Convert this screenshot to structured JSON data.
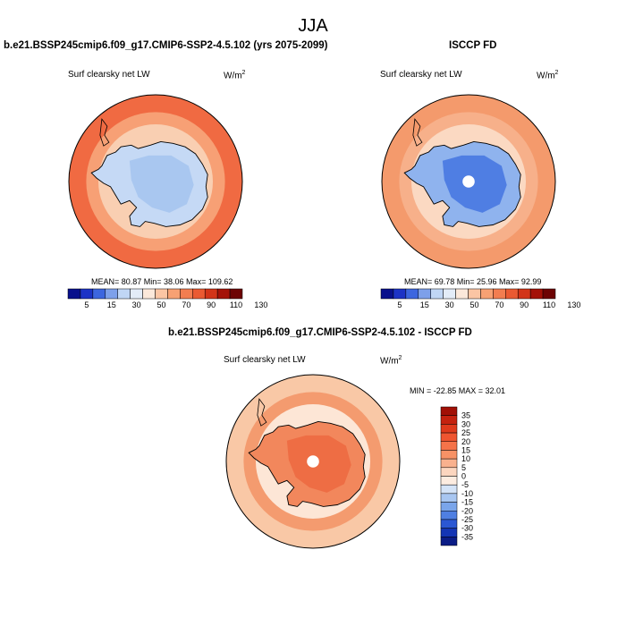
{
  "page_title": "JJA",
  "chart_data": [
    {
      "type": "heatmap",
      "projection": "south-polar-stereographic",
      "title": "b.e21.BSSP245cmip6.f09_g17.CMIP6-SSP2-4.5.102 (yrs 2075-2099)",
      "variable": "Surf clearsky net LW",
      "units": "W/m",
      "units_sup": "2",
      "stats": {
        "mean": 80.87,
        "min": 38.06,
        "max": 109.62
      },
      "stats_text": "MEAN=  80.87  Min=  38.06  Max=  109.62",
      "colorbar": {
        "levels": [
          5,
          15,
          30,
          50,
          70,
          90,
          110,
          130
        ],
        "labels": [
          "5",
          "15",
          "30",
          "50",
          "70",
          "90",
          "110",
          "130"
        ],
        "colors": [
          "#08108c",
          "#1c33c6",
          "#3c66df",
          "#7da0ea",
          "#c0d6f5",
          "#e3ecf8",
          "#fbe8da",
          "#fbc5a4",
          "#f7a173",
          "#f27d50",
          "#ea5a32",
          "#d23418",
          "#a41208",
          "#6d0404"
        ]
      },
      "ocean_color": "#f06a42",
      "ring_color": "#f7a075",
      "coast_color": "#f9cfb2",
      "land_color": "#c5d9f5",
      "interior_color": "#a9c7f0"
    },
    {
      "type": "heatmap",
      "projection": "south-polar-stereographic",
      "title": "ISCCP FD",
      "variable": "Surf clearsky net LW",
      "units": "W/m",
      "units_sup": "2",
      "stats": {
        "mean": 69.78,
        "min": 25.96,
        "max": 92.99
      },
      "stats_text": "MEAN=  69.78  Min=  25.96  Max=  92.99",
      "colorbar": {
        "levels": [
          5,
          15,
          30,
          50,
          70,
          90,
          110,
          130
        ],
        "labels": [
          "5",
          "15",
          "30",
          "50",
          "70",
          "90",
          "110",
          "130"
        ],
        "colors": [
          "#08108c",
          "#1c33c6",
          "#3c66df",
          "#7da0ea",
          "#c0d6f5",
          "#e3ecf8",
          "#fbe8da",
          "#fbc5a4",
          "#f7a173",
          "#f27d50",
          "#ea5a32",
          "#d23418",
          "#a41208",
          "#6d0404"
        ]
      },
      "ocean_color": "#f49a6c",
      "ring_color": "#f7b08a",
      "coast_color": "#fbd9c2",
      "land_color": "#8fb3ee",
      "interior_color": "#4f7ee3"
    },
    {
      "type": "heatmap",
      "projection": "south-polar-stereographic",
      "title": "b.e21.BSSP245cmip6.f09_g17.CMIP6-SSP2-4.5.102 - ISCCP FD",
      "variable": "Surf clearsky net LW",
      "units": "W/m",
      "units_sup": "2",
      "stats": {
        "min": -22.85,
        "max": 32.01
      },
      "stats_text": "MIN = -22.85 MAX =  32.01",
      "colorbar": {
        "levels": [
          35,
          30,
          25,
          20,
          15,
          10,
          5,
          0,
          -5,
          -10,
          -15,
          -20,
          -25,
          -30,
          -35
        ],
        "labels": [
          "35",
          "30",
          "25",
          "20",
          "15",
          "10",
          "5",
          "0",
          "-5",
          "-10",
          "-15",
          "-20",
          "-25",
          "-30",
          "-35"
        ],
        "colors": [
          "#a11006",
          "#c4220f",
          "#df3a1c",
          "#ef5530",
          "#f57349",
          "#f79266",
          "#f9b18e",
          "#fcd6bf",
          "#fdece0",
          "#d4e3f7",
          "#a8c6f1",
          "#7aa5ea",
          "#4f7fe2",
          "#2b57d3",
          "#1435b4",
          "#0b1c86"
        ]
      },
      "ocean_color": "#f9c8a6",
      "ring_color": "#f49b6f",
      "coast_color": "#fde6d6",
      "land_color": "#f2875c",
      "interior_color": "#ee6d44"
    }
  ]
}
